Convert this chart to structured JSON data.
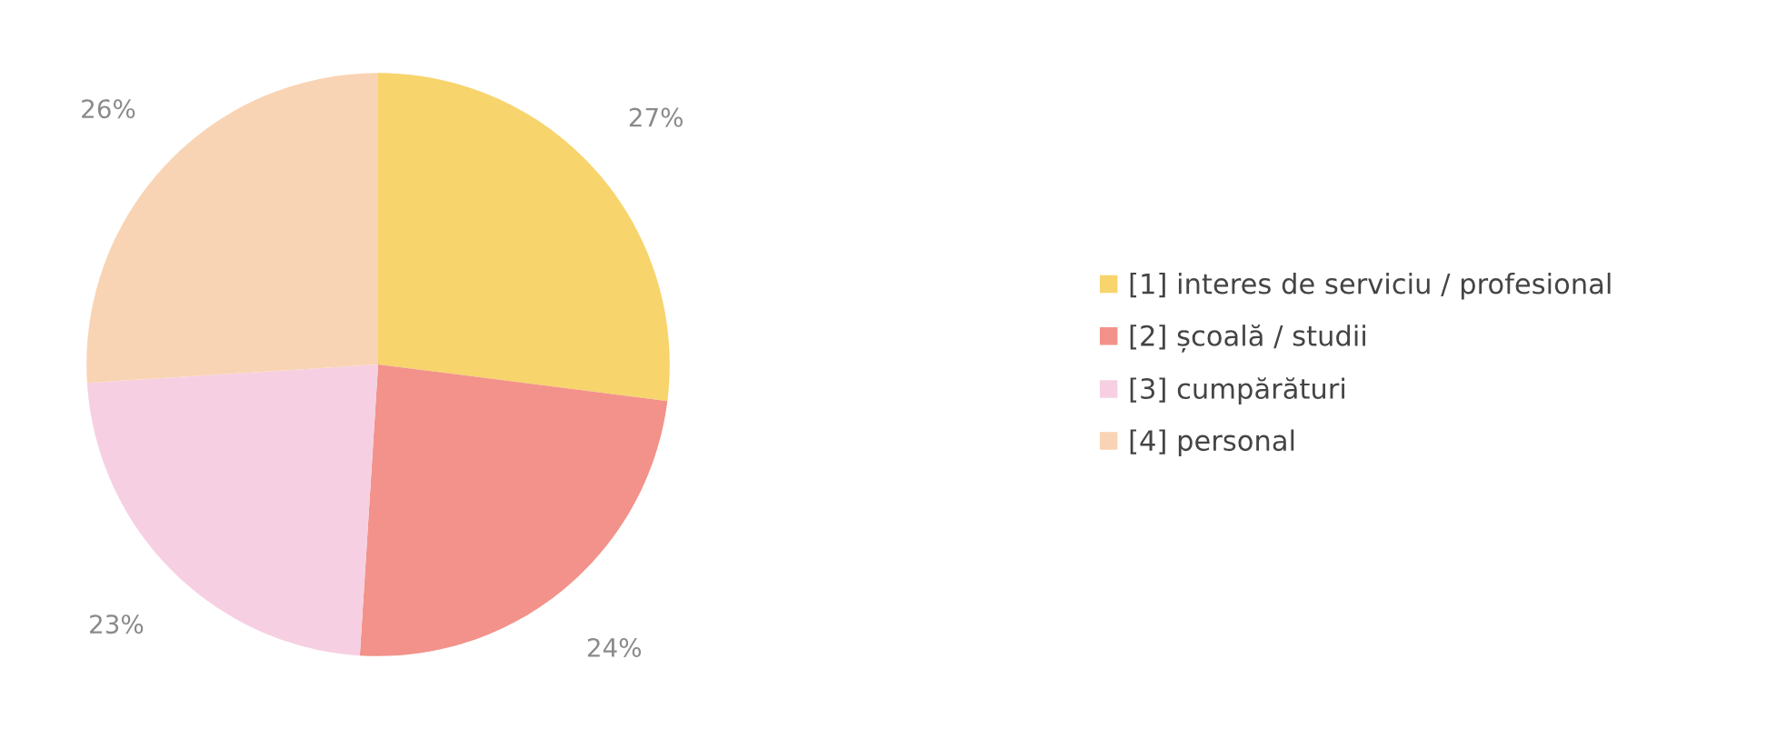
{
  "chart_data": {
    "type": "pie",
    "categories": [
      "[1] interes de serviciu / profesional",
      "[2] școală / studii",
      "[3] cumpărături",
      "[4] personal"
    ],
    "values": [
      27,
      24,
      23,
      26
    ],
    "value_labels": [
      "27%",
      "24%",
      "23%",
      "26%"
    ],
    "colors": [
      "#f7d46c",
      "#f2928a",
      "#f6d0e2",
      "#f9d4b4"
    ],
    "legend": "right"
  }
}
